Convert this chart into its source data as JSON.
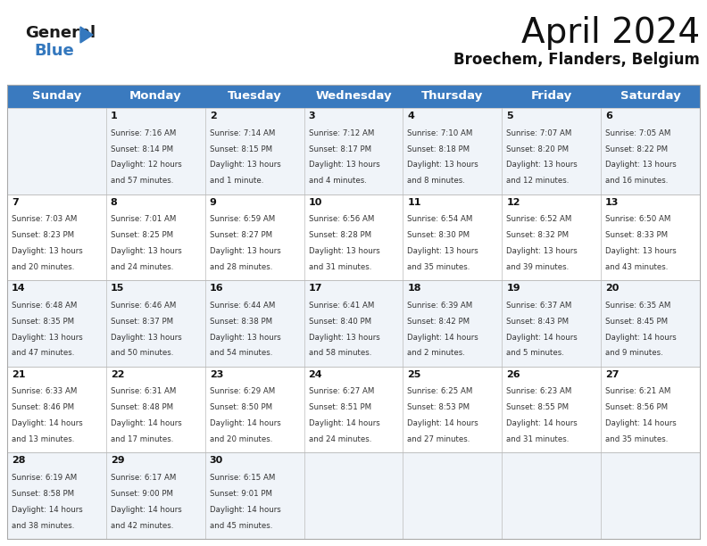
{
  "title": "April 2024",
  "subtitle": "Broechem, Flanders, Belgium",
  "header_color": "#3a7abf",
  "header_text_color": "#ffffff",
  "days_of_week": [
    "Sunday",
    "Monday",
    "Tuesday",
    "Wednesday",
    "Thursday",
    "Friday",
    "Saturday"
  ],
  "weeks": [
    [
      {
        "day": "",
        "sunrise": "",
        "sunset": "",
        "daylight1": "",
        "daylight2": ""
      },
      {
        "day": "1",
        "sunrise": "7:16 AM",
        "sunset": "8:14 PM",
        "daylight1": "Daylight: 12 hours",
        "daylight2": "and 57 minutes."
      },
      {
        "day": "2",
        "sunrise": "7:14 AM",
        "sunset": "8:15 PM",
        "daylight1": "Daylight: 13 hours",
        "daylight2": "and 1 minute."
      },
      {
        "day": "3",
        "sunrise": "7:12 AM",
        "sunset": "8:17 PM",
        "daylight1": "Daylight: 13 hours",
        "daylight2": "and 4 minutes."
      },
      {
        "day": "4",
        "sunrise": "7:10 AM",
        "sunset": "8:18 PM",
        "daylight1": "Daylight: 13 hours",
        "daylight2": "and 8 minutes."
      },
      {
        "day": "5",
        "sunrise": "7:07 AM",
        "sunset": "8:20 PM",
        "daylight1": "Daylight: 13 hours",
        "daylight2": "and 12 minutes."
      },
      {
        "day": "6",
        "sunrise": "7:05 AM",
        "sunset": "8:22 PM",
        "daylight1": "Daylight: 13 hours",
        "daylight2": "and 16 minutes."
      }
    ],
    [
      {
        "day": "7",
        "sunrise": "7:03 AM",
        "sunset": "8:23 PM",
        "daylight1": "Daylight: 13 hours",
        "daylight2": "and 20 minutes."
      },
      {
        "day": "8",
        "sunrise": "7:01 AM",
        "sunset": "8:25 PM",
        "daylight1": "Daylight: 13 hours",
        "daylight2": "and 24 minutes."
      },
      {
        "day": "9",
        "sunrise": "6:59 AM",
        "sunset": "8:27 PM",
        "daylight1": "Daylight: 13 hours",
        "daylight2": "and 28 minutes."
      },
      {
        "day": "10",
        "sunrise": "6:56 AM",
        "sunset": "8:28 PM",
        "daylight1": "Daylight: 13 hours",
        "daylight2": "and 31 minutes."
      },
      {
        "day": "11",
        "sunrise": "6:54 AM",
        "sunset": "8:30 PM",
        "daylight1": "Daylight: 13 hours",
        "daylight2": "and 35 minutes."
      },
      {
        "day": "12",
        "sunrise": "6:52 AM",
        "sunset": "8:32 PM",
        "daylight1": "Daylight: 13 hours",
        "daylight2": "and 39 minutes."
      },
      {
        "day": "13",
        "sunrise": "6:50 AM",
        "sunset": "8:33 PM",
        "daylight1": "Daylight: 13 hours",
        "daylight2": "and 43 minutes."
      }
    ],
    [
      {
        "day": "14",
        "sunrise": "6:48 AM",
        "sunset": "8:35 PM",
        "daylight1": "Daylight: 13 hours",
        "daylight2": "and 47 minutes."
      },
      {
        "day": "15",
        "sunrise": "6:46 AM",
        "sunset": "8:37 PM",
        "daylight1": "Daylight: 13 hours",
        "daylight2": "and 50 minutes."
      },
      {
        "day": "16",
        "sunrise": "6:44 AM",
        "sunset": "8:38 PM",
        "daylight1": "Daylight: 13 hours",
        "daylight2": "and 54 minutes."
      },
      {
        "day": "17",
        "sunrise": "6:41 AM",
        "sunset": "8:40 PM",
        "daylight1": "Daylight: 13 hours",
        "daylight2": "and 58 minutes."
      },
      {
        "day": "18",
        "sunrise": "6:39 AM",
        "sunset": "8:42 PM",
        "daylight1": "Daylight: 14 hours",
        "daylight2": "and 2 minutes."
      },
      {
        "day": "19",
        "sunrise": "6:37 AM",
        "sunset": "8:43 PM",
        "daylight1": "Daylight: 14 hours",
        "daylight2": "and 5 minutes."
      },
      {
        "day": "20",
        "sunrise": "6:35 AM",
        "sunset": "8:45 PM",
        "daylight1": "Daylight: 14 hours",
        "daylight2": "and 9 minutes."
      }
    ],
    [
      {
        "day": "21",
        "sunrise": "6:33 AM",
        "sunset": "8:46 PM",
        "daylight1": "Daylight: 14 hours",
        "daylight2": "and 13 minutes."
      },
      {
        "day": "22",
        "sunrise": "6:31 AM",
        "sunset": "8:48 PM",
        "daylight1": "Daylight: 14 hours",
        "daylight2": "and 17 minutes."
      },
      {
        "day": "23",
        "sunrise": "6:29 AM",
        "sunset": "8:50 PM",
        "daylight1": "Daylight: 14 hours",
        "daylight2": "and 20 minutes."
      },
      {
        "day": "24",
        "sunrise": "6:27 AM",
        "sunset": "8:51 PM",
        "daylight1": "Daylight: 14 hours",
        "daylight2": "and 24 minutes."
      },
      {
        "day": "25",
        "sunrise": "6:25 AM",
        "sunset": "8:53 PM",
        "daylight1": "Daylight: 14 hours",
        "daylight2": "and 27 minutes."
      },
      {
        "day": "26",
        "sunrise": "6:23 AM",
        "sunset": "8:55 PM",
        "daylight1": "Daylight: 14 hours",
        "daylight2": "and 31 minutes."
      },
      {
        "day": "27",
        "sunrise": "6:21 AM",
        "sunset": "8:56 PM",
        "daylight1": "Daylight: 14 hours",
        "daylight2": "and 35 minutes."
      }
    ],
    [
      {
        "day": "28",
        "sunrise": "6:19 AM",
        "sunset": "8:58 PM",
        "daylight1": "Daylight: 14 hours",
        "daylight2": "and 38 minutes."
      },
      {
        "day": "29",
        "sunrise": "6:17 AM",
        "sunset": "9:00 PM",
        "daylight1": "Daylight: 14 hours",
        "daylight2": "and 42 minutes."
      },
      {
        "day": "30",
        "sunrise": "6:15 AM",
        "sunset": "9:01 PM",
        "daylight1": "Daylight: 14 hours",
        "daylight2": "and 45 minutes."
      },
      {
        "day": "",
        "sunrise": "",
        "sunset": "",
        "daylight1": "",
        "daylight2": ""
      },
      {
        "day": "",
        "sunrise": "",
        "sunset": "",
        "daylight1": "",
        "daylight2": ""
      },
      {
        "day": "",
        "sunrise": "",
        "sunset": "",
        "daylight1": "",
        "daylight2": ""
      },
      {
        "day": "",
        "sunrise": "",
        "sunset": "",
        "daylight1": "",
        "daylight2": ""
      }
    ]
  ],
  "row_colors": [
    "#f0f4f9",
    "#ffffff",
    "#f0f4f9",
    "#ffffff",
    "#f0f4f9"
  ],
  "logo_color_general": "#1a1a1a",
  "logo_color_blue": "#3478be",
  "title_fontsize": 28,
  "subtitle_fontsize": 12,
  "header_fontsize": 9.5,
  "day_num_fontsize": 8,
  "cell_text_fontsize": 6.2,
  "fig_bg": "#ffffff",
  "grid_color": "#bbbbbb",
  "text_color": "#333333"
}
